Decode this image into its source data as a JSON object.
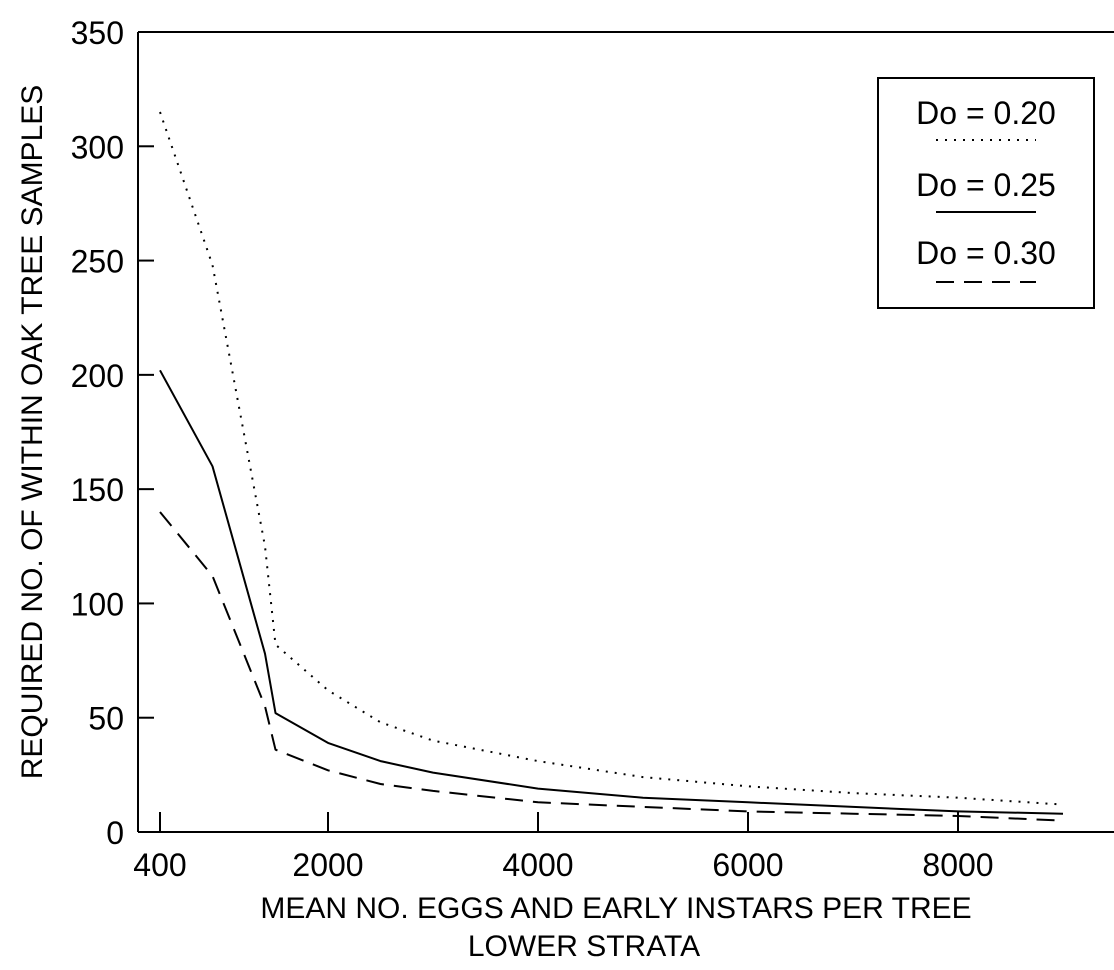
{
  "chart_data": {
    "type": "line",
    "title": "",
    "xlabel": "MEAN NO. EGGS AND EARLY INSTARS PER TREE",
    "xlabel2": "LOWER STRATA",
    "ylabel": "REQUIRED NO. OF WITHIN OAK TREE SAMPLES",
    "xlim": [
      400,
      9000
    ],
    "ylim": [
      0,
      350
    ],
    "x_ticks": [
      {
        "value": 400,
        "label": "400"
      },
      {
        "value": 2000,
        "label": "2000"
      },
      {
        "value": 4000,
        "label": "4000"
      },
      {
        "value": 6000,
        "label": "6000"
      },
      {
        "value": 8000,
        "label": "8000"
      }
    ],
    "y_ticks": [
      {
        "value": 0,
        "label": "0"
      },
      {
        "value": 50,
        "label": "50"
      },
      {
        "value": 100,
        "label": "100"
      },
      {
        "value": 150,
        "label": "150"
      },
      {
        "value": 200,
        "label": "200"
      },
      {
        "value": 250,
        "label": "250"
      },
      {
        "value": 300,
        "label": "300"
      },
      {
        "value": 350,
        "label": "350"
      }
    ],
    "grid": false,
    "legend": {
      "placement": "top-right",
      "entries": [
        {
          "label": "Do = 0.20",
          "style": "dotted"
        },
        {
          "label": "Do = 0.25",
          "style": "solid"
        },
        {
          "label": "Do = 0.30",
          "style": "dashed"
        }
      ]
    },
    "series": [
      {
        "name": "Do = 0.20",
        "style": "dotted",
        "x": [
          400,
          900,
          1400,
          1500,
          2000,
          2500,
          3000,
          4000,
          5000,
          6000,
          7000,
          8000,
          9000
        ],
        "y": [
          315,
          248,
          125,
          82,
          62,
          48,
          40,
          31,
          24,
          20,
          17,
          15,
          12
        ]
      },
      {
        "name": "Do = 0.25",
        "style": "solid",
        "x": [
          400,
          900,
          1400,
          1500,
          2000,
          2500,
          3000,
          4000,
          5000,
          6000,
          7000,
          8000,
          9000
        ],
        "y": [
          202,
          160,
          78,
          52,
          39,
          31,
          26,
          19,
          15,
          13,
          11,
          9,
          8
        ]
      },
      {
        "name": "Do = 0.30",
        "style": "dashed",
        "x": [
          400,
          900,
          1400,
          1500,
          2000,
          2500,
          3000,
          4000,
          5000,
          6000,
          7000,
          8000,
          9000
        ],
        "y": [
          140,
          112,
          55,
          36,
          27,
          21,
          18,
          13,
          11,
          9,
          8,
          7,
          5
        ]
      }
    ]
  }
}
